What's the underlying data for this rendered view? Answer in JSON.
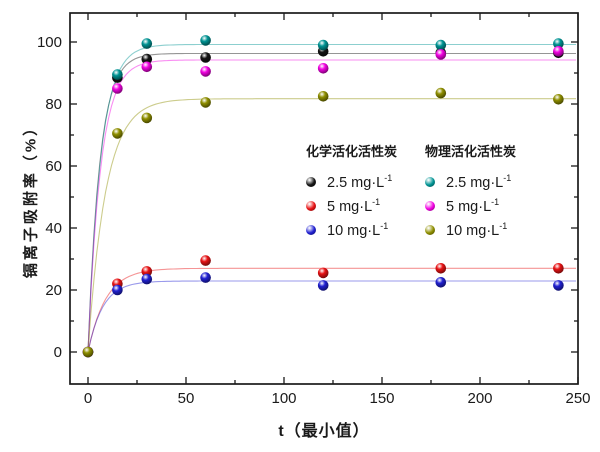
{
  "chart_data": {
    "type": "scatter",
    "title": "",
    "xlabel": "t（最小值）",
    "ylabel": "镉离子吸附率（%）",
    "xlim": [
      -10,
      250
    ],
    "ylim": [
      -10,
      110
    ],
    "grid": false,
    "legend_position": "inside-center-right",
    "x_ticks": [
      0,
      50,
      100,
      150,
      200,
      250
    ],
    "x_minor_ticks": [
      25,
      75,
      125,
      175,
      225
    ],
    "y_ticks": [
      0,
      20,
      40,
      60,
      80,
      100
    ],
    "y_minor_ticks": [
      10,
      30,
      50,
      70,
      90
    ],
    "x": [
      0,
      15,
      30,
      60,
      120,
      180,
      240
    ],
    "series": [
      {
        "group": "化学活化活性炭",
        "label": "2.5 mg·L",
        "label_sup": "-1",
        "color": "#141414",
        "values": [
          0,
          88.5,
          94.5,
          95,
          97,
          96.5,
          96.5
        ],
        "fit": {
          "plateau": 96.3,
          "tau": 6
        }
      },
      {
        "group": "化学活化活性炭",
        "label": "5 mg·L",
        "label_sup": "-1",
        "color": "#e81214",
        "values": [
          0,
          22,
          26,
          29.5,
          25.5,
          27,
          27
        ],
        "fit": {
          "plateau": 27,
          "tau": 9
        }
      },
      {
        "group": "化学活化活性炭",
        "label": "10 mg·L",
        "label_sup": "-1",
        "color": "#2020d2",
        "values": [
          0,
          20,
          23.5,
          24,
          21.5,
          22.5,
          21.5
        ],
        "fit": {
          "plateau": 22.9,
          "tau": 7.5
        }
      },
      {
        "group": "物理活化活性炭",
        "label": "2.5 mg·L",
        "label_sup": "-1",
        "color": "#009494",
        "values": [
          0,
          89.5,
          99.5,
          100.5,
          99,
          99,
          99.5
        ],
        "fit": {
          "plateau": 99.2,
          "tau": 6.5
        }
      },
      {
        "group": "物理活化活性炭",
        "label": "5 mg·L",
        "label_sup": "-1",
        "color": "#f202e2",
        "values": [
          0,
          85,
          92,
          90.5,
          91.5,
          96,
          97
        ],
        "fit": {
          "plateau": 94.2,
          "tau": 6.5
        }
      },
      {
        "group": "物理活化活性炭",
        "label": "10 mg·L",
        "label_sup": "-1",
        "color": "#8f8f00",
        "values": [
          0,
          70.5,
          75.5,
          80.5,
          82.5,
          83.5,
          81.5
        ],
        "fit": {
          "plateau": 81.7,
          "tau": 9
        }
      }
    ],
    "legend": {
      "columns": [
        {
          "header": "化学活化活性炭",
          "series_indexes": [
            0,
            1,
            2
          ]
        },
        {
          "header": "物理活化活性炭",
          "series_indexes": [
            3,
            4,
            5
          ]
        }
      ]
    }
  }
}
